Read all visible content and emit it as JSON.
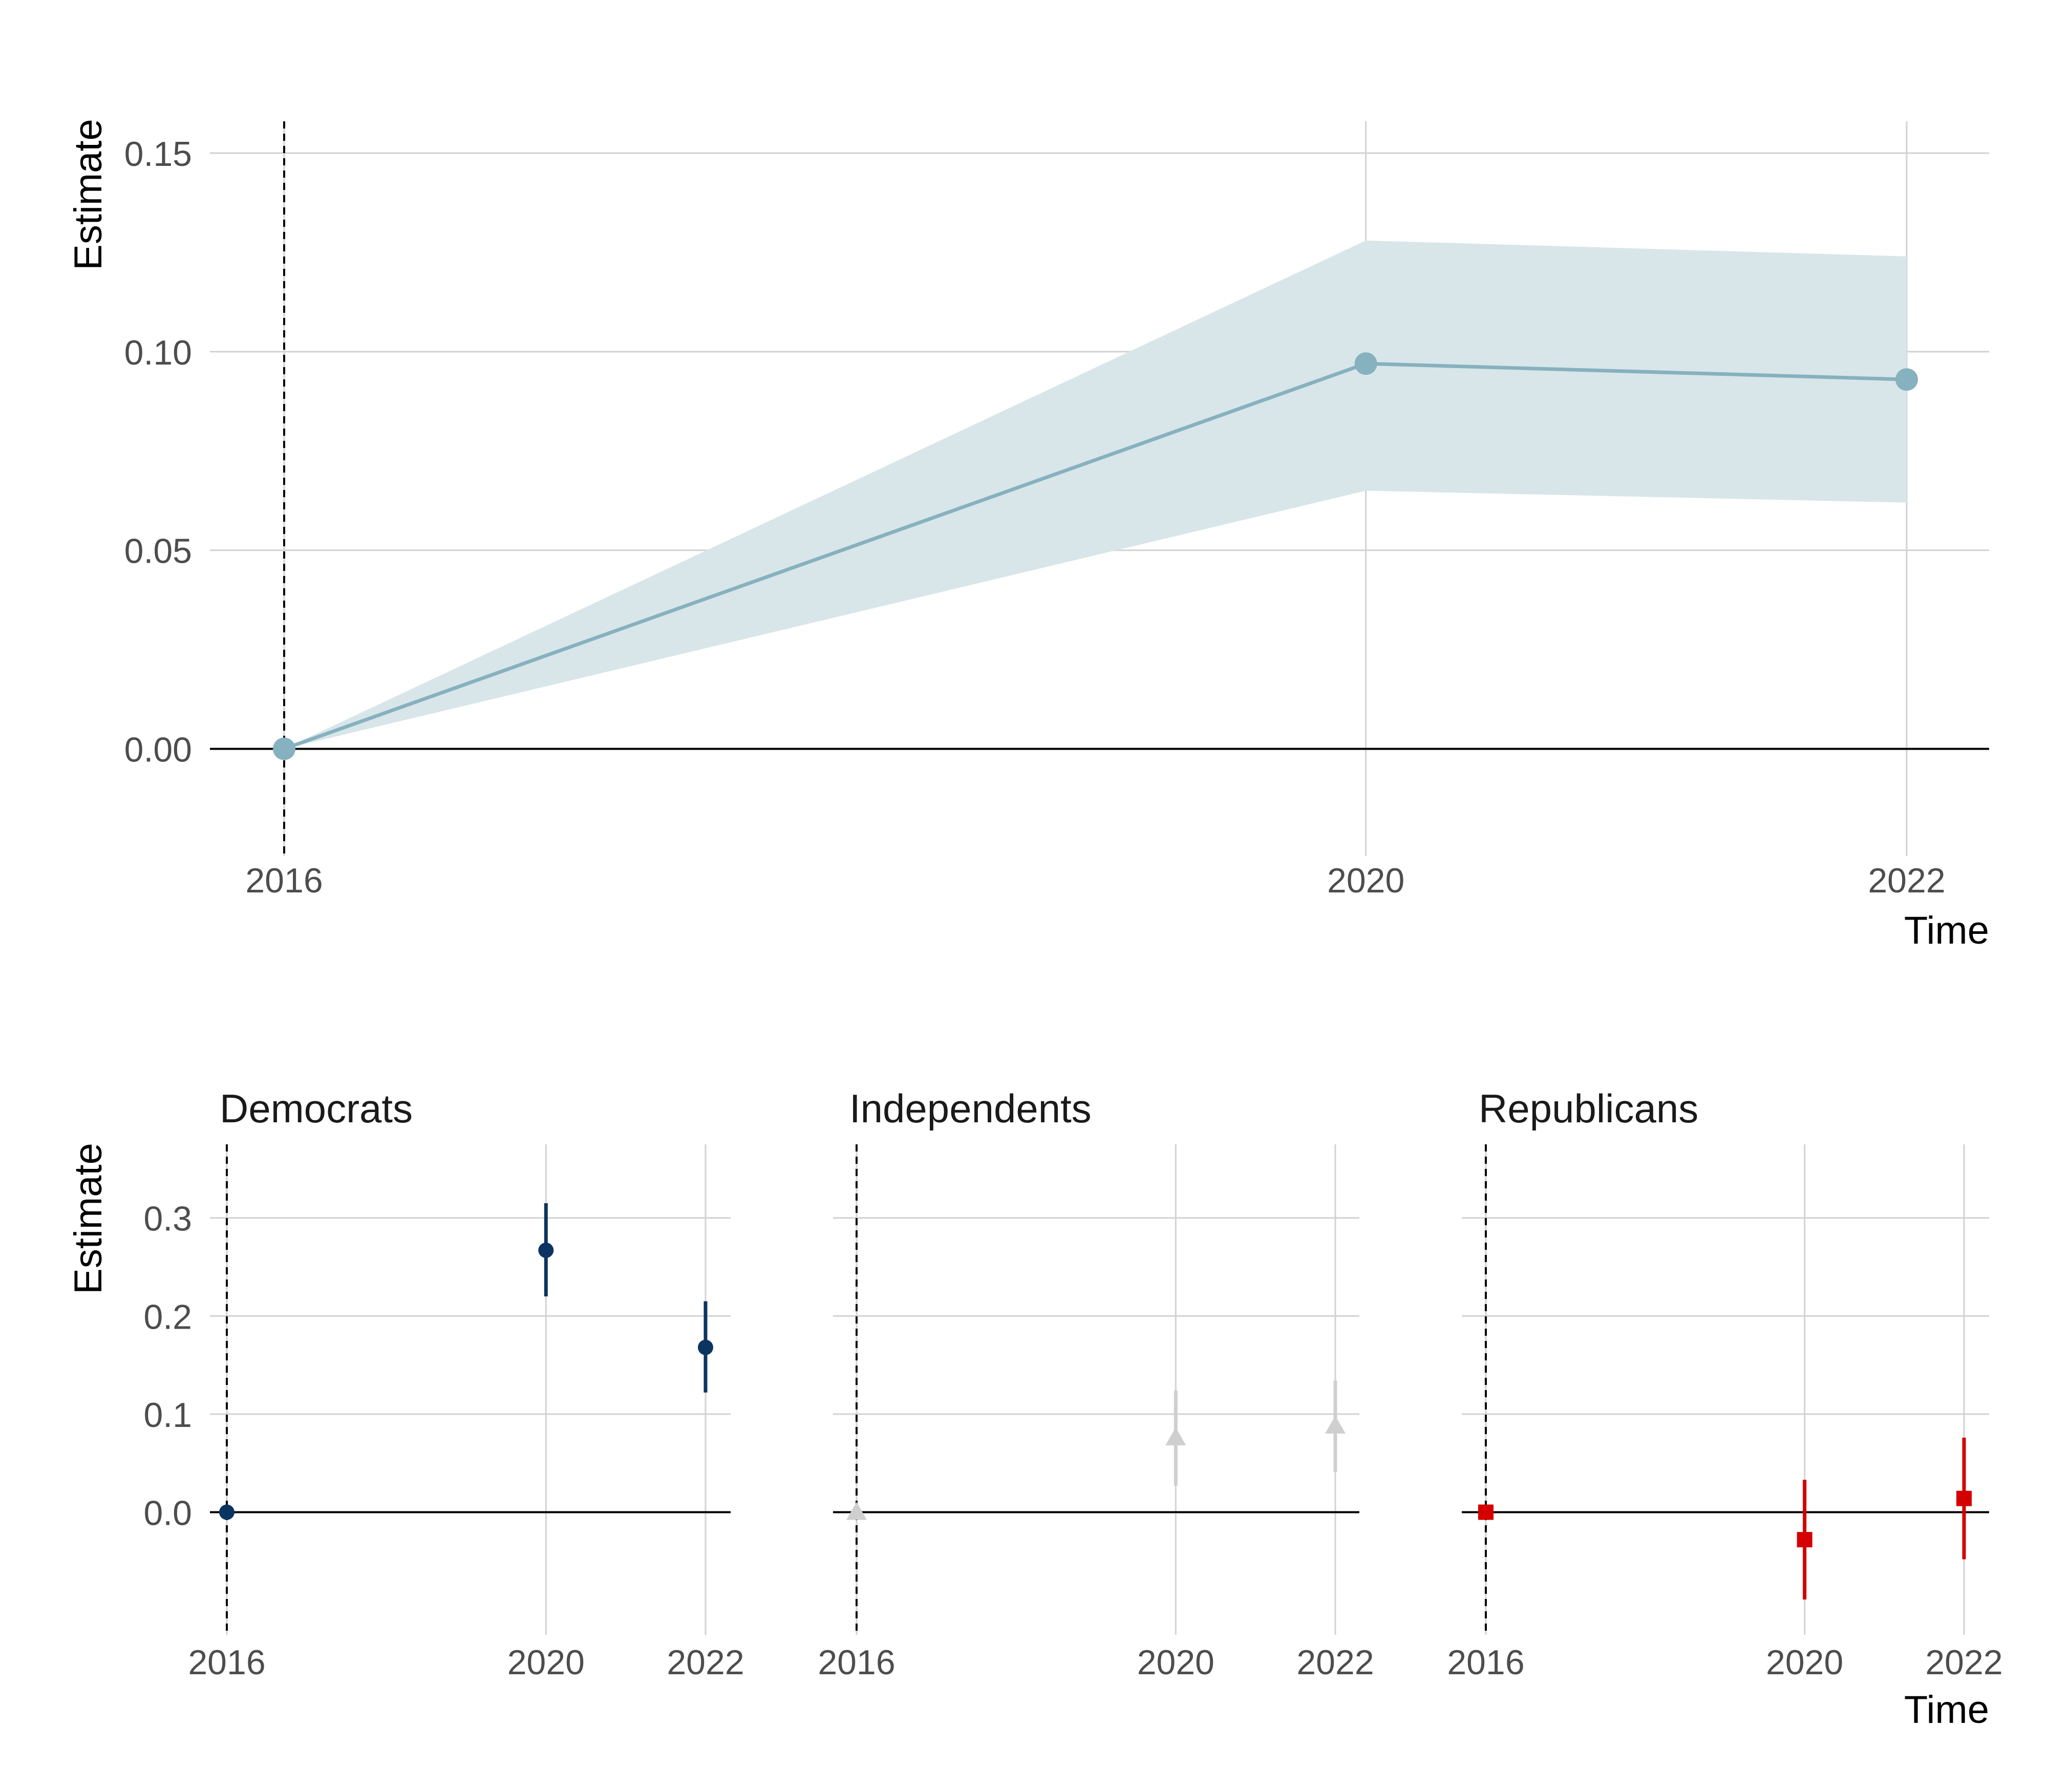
{
  "chart_data": [
    {
      "type": "line",
      "xlabel": "Time",
      "ylabel": "Estimate",
      "x_ticks": [
        "2016",
        "2020",
        "2022"
      ],
      "y_ticks": [
        "0.00",
        "0.05",
        "0.10",
        "0.15"
      ],
      "xlim": [
        2016,
        2022
      ],
      "ylim": [
        -0.027,
        0.158
      ],
      "reference_year": 2016,
      "grid": true,
      "color": "#86b1bf",
      "ribbon_color": "#d8e6e9",
      "series": [
        {
          "x": [
            2016,
            2020,
            2022
          ],
          "y": [
            0.0,
            0.097,
            0.093
          ],
          "ci_low": [
            0.0,
            0.065,
            0.062
          ],
          "ci_high": [
            0.0,
            0.128,
            0.124
          ]
        }
      ]
    },
    {
      "type": "scatter",
      "xlabel": "Time",
      "ylabel": "Estimate",
      "x_ticks": [
        "2016",
        "2020",
        "2022"
      ],
      "y_ticks": [
        "0.0",
        "0.1",
        "0.2",
        "0.3"
      ],
      "xlim": [
        2016,
        2022
      ],
      "ylim": [
        -0.125,
        0.375
      ],
      "reference_year": 2016,
      "grid": true,
      "panels": [
        {
          "title": "Democrats",
          "color": "#0c3460",
          "shape": "circle",
          "x": [
            2016,
            2020,
            2022
          ],
          "y": [
            0.0,
            0.267,
            0.168
          ],
          "ci_low": [
            0.0,
            0.22,
            0.122
          ],
          "ci_high": [
            0.0,
            0.315,
            0.215
          ]
        },
        {
          "title": "Independents",
          "color": "#cfcfcf",
          "shape": "triangle",
          "x": [
            2016,
            2020,
            2022
          ],
          "y": [
            0.0,
            0.076,
            0.088
          ],
          "ci_low": [
            0.0,
            0.027,
            0.041
          ],
          "ci_high": [
            0.0,
            0.124,
            0.134
          ]
        },
        {
          "title": "Republicans",
          "color": "#d40000",
          "shape": "square",
          "x": [
            2016,
            2020,
            2022
          ],
          "y": [
            0.0,
            -0.028,
            0.014
          ],
          "ci_low": [
            0.0,
            -0.089,
            -0.048
          ],
          "ci_high": [
            0.0,
            0.033,
            0.076
          ]
        }
      ]
    }
  ]
}
